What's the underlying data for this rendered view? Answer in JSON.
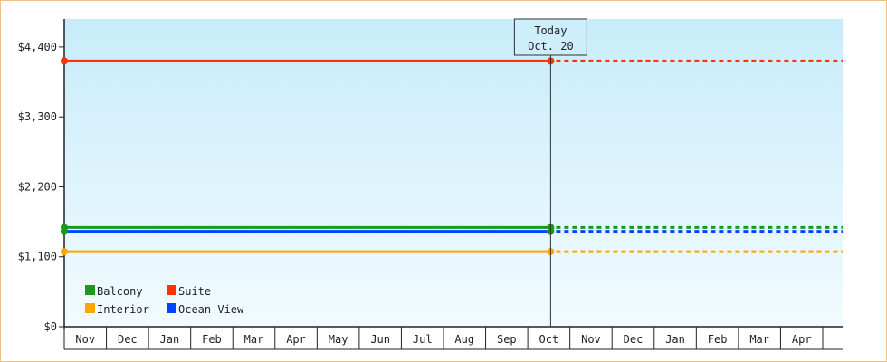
{
  "chart_data": {
    "type": "line",
    "title": "",
    "xlabel": "",
    "ylabel": "",
    "ylim": [
      0,
      4840
    ],
    "yticks": [
      "$0",
      "$1,100",
      "$2,200",
      "$3,300",
      "$4,400"
    ],
    "ytick_values": [
      0,
      1100,
      2200,
      3300,
      4400
    ],
    "months": [
      "Nov",
      "Dec",
      "Jan",
      "Feb",
      "Mar",
      "Apr",
      "May",
      "Jun",
      "Jul",
      "Aug",
      "Sep",
      "Oct",
      "Nov",
      "Dec",
      "Jan",
      "Feb",
      "Mar",
      "Apr"
    ],
    "today_index": 11,
    "today": {
      "line1": "Today",
      "line2": "Oct. 20"
    },
    "grid": false,
    "legend_position": "bottom-left",
    "series": [
      {
        "name": "Balcony",
        "color": "#1a9a1a",
        "value": 1560,
        "dot_color": "#1a9a1a"
      },
      {
        "name": "Suite",
        "color": "#ff3300",
        "value": 4180,
        "dot_color": "#ff3300"
      },
      {
        "name": "Interior",
        "color": "#ffa500",
        "value": 1180,
        "dot_color": "#ffa500"
      },
      {
        "name": "Ocean View",
        "color": "#0044ff",
        "value": 1500,
        "dot_color": "#1a9a1a"
      }
    ],
    "legend_order": [
      0,
      1,
      2,
      3
    ]
  }
}
